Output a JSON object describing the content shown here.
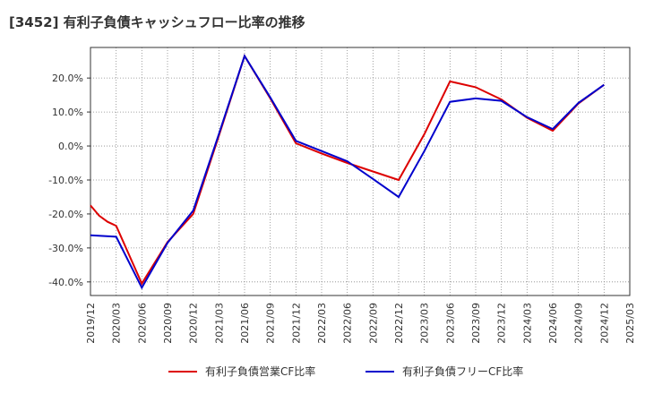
{
  "chart_data": {
    "type": "line",
    "title": "[3452]  有利子負債キャッシュフロー比率の推移",
    "xlabel": "",
    "ylabel": "",
    "ylim": [
      -44,
      29
    ],
    "grid": true,
    "legend_position": "bottom",
    "x_ticks": [
      "2019/12",
      "2020/03",
      "2020/06",
      "2020/09",
      "2020/12",
      "2021/03",
      "2021/06",
      "2021/09",
      "2021/12",
      "2022/03",
      "2022/06",
      "2022/09",
      "2022/12",
      "2023/03",
      "2023/06",
      "2023/09",
      "2023/12",
      "2024/03",
      "2024/06",
      "2024/09",
      "2024/12",
      "2025/03"
    ],
    "y_ticks": [
      {
        "value": 20,
        "label": "20.0%"
      },
      {
        "value": 10,
        "label": "10.0%"
      },
      {
        "value": 0,
        "label": "0.0%"
      },
      {
        "value": -10,
        "label": "-10.0%"
      },
      {
        "value": -20,
        "label": "-20.0%"
      },
      {
        "value": -30,
        "label": "-30.0%"
      },
      {
        "value": -40,
        "label": "-40.0%"
      }
    ],
    "series": [
      {
        "name": "有利子負債営業CF比率",
        "color": "#dd0000",
        "points": [
          {
            "x": "2019/12",
            "y": -17.5
          },
          {
            "x": "2020/01",
            "y": -20.5
          },
          {
            "x": "2020/02",
            "y": -22.3
          },
          {
            "x": "2020/03",
            "y": -23.5
          },
          {
            "x": "2020/06",
            "y": -40.5
          },
          {
            "x": "2020/09",
            "y": -28.3
          },
          {
            "x": "2020/12",
            "y": -20
          },
          {
            "x": "2021/03",
            "y": 3
          },
          {
            "x": "2021/06",
            "y": 26.5
          },
          {
            "x": "2021/09",
            "y": 14
          },
          {
            "x": "2021/12",
            "y": 0.8
          },
          {
            "x": "2022/03",
            "y": -2.2
          },
          {
            "x": "2022/06",
            "y": -5
          },
          {
            "x": "2022/09",
            "y": -7.5
          },
          {
            "x": "2022/12",
            "y": -10
          },
          {
            "x": "2023/03",
            "y": 3.5
          },
          {
            "x": "2023/06",
            "y": 19
          },
          {
            "x": "2023/09",
            "y": 17.3
          },
          {
            "x": "2023/12",
            "y": 13.7
          },
          {
            "x": "2024/03",
            "y": 8.3
          },
          {
            "x": "2024/06",
            "y": 4.5
          },
          {
            "x": "2024/09",
            "y": 12.5
          },
          {
            "x": "2024/12",
            "y": 18
          }
        ]
      },
      {
        "name": "有利子負債フリーCF比率",
        "color": "#0000cc",
        "points": [
          {
            "x": "2019/12",
            "y": -26.3
          },
          {
            "x": "2020/03",
            "y": -26.7
          },
          {
            "x": "2020/06",
            "y": -41.7
          },
          {
            "x": "2020/09",
            "y": -28.5
          },
          {
            "x": "2020/12",
            "y": -19
          },
          {
            "x": "2021/03",
            "y": 3.5
          },
          {
            "x": "2021/06",
            "y": 26.5
          },
          {
            "x": "2021/09",
            "y": 14.3
          },
          {
            "x": "2021/12",
            "y": 1.5
          },
          {
            "x": "2022/03",
            "y": -1.5
          },
          {
            "x": "2022/06",
            "y": -4.5
          },
          {
            "x": "2022/09",
            "y": -9.7
          },
          {
            "x": "2022/12",
            "y": -15
          },
          {
            "x": "2023/03",
            "y": -1.5
          },
          {
            "x": "2023/06",
            "y": 13
          },
          {
            "x": "2023/09",
            "y": 14
          },
          {
            "x": "2023/12",
            "y": 13.3
          },
          {
            "x": "2024/03",
            "y": 8.5
          },
          {
            "x": "2024/06",
            "y": 5
          },
          {
            "x": "2024/09",
            "y": 12.7
          },
          {
            "x": "2024/12",
            "y": 18
          }
        ]
      }
    ]
  }
}
